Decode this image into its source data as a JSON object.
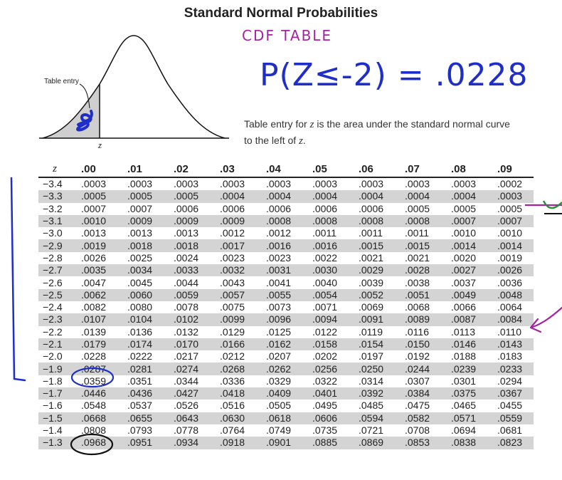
{
  "title": "Standard Normal Probabilities",
  "handwriting": {
    "subtitle": "CDF TABLE",
    "probability": "P(Z≤-2) = .0228"
  },
  "figure": {
    "table_entry_label": "Table entry",
    "z_label": "z"
  },
  "caption": {
    "pre": "Table entry for ",
    "z": "z",
    "mid": " is the area under the standard normal curve to the left of ",
    "z2": "z",
    "end": "."
  },
  "table": {
    "z_header": "z",
    "columns": [
      ".00",
      ".01",
      ".02",
      ".03",
      ".04",
      ".05",
      ".06",
      ".07",
      ".08",
      ".09"
    ],
    "rows": [
      {
        "z": "−3.4",
        "values": [
          ".0003",
          ".0003",
          ".0003",
          ".0003",
          ".0003",
          ".0003",
          ".0003",
          ".0003",
          ".0003",
          ".0002"
        ]
      },
      {
        "z": "−3.3",
        "values": [
          ".0005",
          ".0005",
          ".0005",
          ".0004",
          ".0004",
          ".0004",
          ".0004",
          ".0004",
          ".0004",
          ".0003"
        ]
      },
      {
        "z": "−3.2",
        "values": [
          ".0007",
          ".0007",
          ".0006",
          ".0006",
          ".0006",
          ".0006",
          ".0006",
          ".0005",
          ".0005",
          ".0005"
        ]
      },
      {
        "z": "−3.1",
        "values": [
          ".0010",
          ".0009",
          ".0009",
          ".0009",
          ".0008",
          ".0008",
          ".0008",
          ".0008",
          ".0007",
          ".0007"
        ]
      },
      {
        "z": "−3.0",
        "values": [
          ".0013",
          ".0013",
          ".0013",
          ".0012",
          ".0012",
          ".0011",
          ".0011",
          ".0011",
          ".0010",
          ".0010"
        ]
      },
      {
        "z": "−2.9",
        "values": [
          ".0019",
          ".0018",
          ".0018",
          ".0017",
          ".0016",
          ".0016",
          ".0015",
          ".0015",
          ".0014",
          ".0014"
        ]
      },
      {
        "z": "−2.8",
        "values": [
          ".0026",
          ".0025",
          ".0024",
          ".0023",
          ".0023",
          ".0022",
          ".0021",
          ".0021",
          ".0020",
          ".0019"
        ]
      },
      {
        "z": "−2.7",
        "values": [
          ".0035",
          ".0034",
          ".0033",
          ".0032",
          ".0031",
          ".0030",
          ".0029",
          ".0028",
          ".0027",
          ".0026"
        ]
      },
      {
        "z": "−2.6",
        "values": [
          ".0047",
          ".0045",
          ".0044",
          ".0043",
          ".0041",
          ".0040",
          ".0039",
          ".0038",
          ".0037",
          ".0036"
        ]
      },
      {
        "z": "−2.5",
        "values": [
          ".0062",
          ".0060",
          ".0059",
          ".0057",
          ".0055",
          ".0054",
          ".0052",
          ".0051",
          ".0049",
          ".0048"
        ]
      },
      {
        "z": "−2.4",
        "values": [
          ".0082",
          ".0080",
          ".0078",
          ".0075",
          ".0073",
          ".0071",
          ".0069",
          ".0068",
          ".0066",
          ".0064"
        ]
      },
      {
        "z": "−2.3",
        "values": [
          ".0107",
          ".0104",
          ".0102",
          ".0099",
          ".0096",
          ".0094",
          ".0091",
          ".0089",
          ".0087",
          ".0084"
        ]
      },
      {
        "z": "−2.2",
        "values": [
          ".0139",
          ".0136",
          ".0132",
          ".0129",
          ".0125",
          ".0122",
          ".0119",
          ".0116",
          ".0113",
          ".0110"
        ]
      },
      {
        "z": "−2.1",
        "values": [
          ".0179",
          ".0174",
          ".0170",
          ".0166",
          ".0162",
          ".0158",
          ".0154",
          ".0150",
          ".0146",
          ".0143"
        ]
      },
      {
        "z": "−2.0",
        "values": [
          ".0228",
          ".0222",
          ".0217",
          ".0212",
          ".0207",
          ".0202",
          ".0197",
          ".0192",
          ".0188",
          ".0183"
        ]
      },
      {
        "z": "−1.9",
        "values": [
          ".0287",
          ".0281",
          ".0274",
          ".0268",
          ".0262",
          ".0256",
          ".0250",
          ".0244",
          ".0239",
          ".0233"
        ]
      },
      {
        "z": "−1.8",
        "values": [
          ".0359",
          ".0351",
          ".0344",
          ".0336",
          ".0329",
          ".0322",
          ".0314",
          ".0307",
          ".0301",
          ".0294"
        ]
      },
      {
        "z": "−1.7",
        "values": [
          ".0446",
          ".0436",
          ".0427",
          ".0418",
          ".0409",
          ".0401",
          ".0392",
          ".0384",
          ".0375",
          ".0367"
        ]
      },
      {
        "z": "−1.6",
        "values": [
          ".0548",
          ".0537",
          ".0526",
          ".0516",
          ".0505",
          ".0495",
          ".0485",
          ".0475",
          ".0465",
          ".0455"
        ]
      },
      {
        "z": "−1.5",
        "values": [
          ".0668",
          ".0655",
          ".0643",
          ".0630",
          ".0618",
          ".0606",
          ".0594",
          ".0582",
          ".0571",
          ".0559"
        ]
      },
      {
        "z": "−1.4",
        "values": [
          ".0808",
          ".0793",
          ".0778",
          ".0764",
          ".0749",
          ".0735",
          ".0721",
          ".0708",
          ".0694",
          ".0681"
        ]
      },
      {
        "z": "−1.3",
        "values": [
          ".0968",
          ".0951",
          ".0934",
          ".0918",
          ".0901",
          ".0885",
          ".0869",
          ".0853",
          ".0838",
          ".0823"
        ]
      }
    ]
  },
  "colors": {
    "pen_blue": "#1f2ec8",
    "pen_purple": "#a4239e",
    "pen_black": "#111111",
    "pen_green": "#2e8b3a",
    "row_shade": "#d4d4d4"
  }
}
